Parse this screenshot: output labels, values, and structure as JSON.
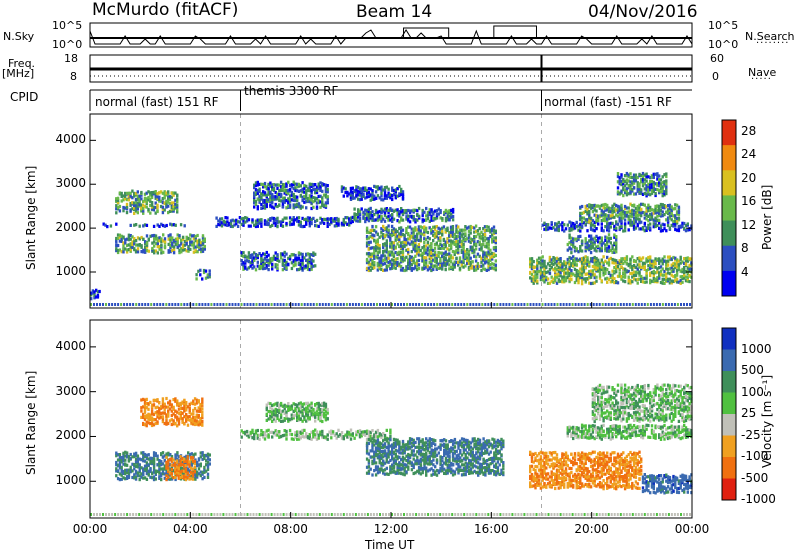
{
  "header": {
    "station": "McMurdo (fitACF)",
    "beam": "Beam 14",
    "date": "04/Nov/2016"
  },
  "summary_panels": {
    "left_labels": {
      "nsky": "N.Sky",
      "freq": "Freq.",
      "mhz": "[MHz]",
      "cpid": "CPID"
    },
    "right_labels": {
      "nsearch": "N.Search",
      "nave": "Nave"
    },
    "noise_ticks_left": [
      "10^5",
      "10^0"
    ],
    "noise_ticks_right": [
      "10^5",
      "10^0"
    ],
    "freq_ticks_left": [
      "18",
      "8"
    ],
    "nave_ticks_right": [
      "60",
      "0"
    ],
    "cpid_segments": [
      {
        "label": "normal (fast) 151 RF",
        "start": 0,
        "end": 6
      },
      {
        "label": "themis 3300 RF",
        "start": 6,
        "end": 18
      },
      {
        "label": "normal (fast) -151 RF",
        "start": 18,
        "end": 24
      }
    ]
  },
  "chart_data": [
    {
      "type": "heatmap",
      "name": "power",
      "ylabel": "Slant Range [km]",
      "xlabel": "",
      "xlim": [
        0,
        24
      ],
      "ylim": [
        180,
        4600
      ],
      "yticks": [
        "1000",
        "2000",
        "3000",
        "4000"
      ],
      "colorbar": {
        "label": "Power [dB]",
        "ticks": [
          "4",
          "8",
          "12",
          "16",
          "20",
          "24",
          "28"
        ],
        "range": [
          0,
          30
        ],
        "colors": [
          "#0000f0",
          "#2c4fc0",
          "#3f8f5a",
          "#69b94a",
          "#d9c020",
          "#f08a10",
          "#e03010"
        ]
      },
      "regions": [
        {
          "t": [
            1.0,
            4.6
          ],
          "r": [
            1500,
            1900
          ],
          "value": 12
        },
        {
          "t": [
            0.5,
            3.8
          ],
          "r": [
            2100,
            2150
          ],
          "value": 6
        },
        {
          "t": [
            0.0,
            0.4
          ],
          "r": [
            450,
            650
          ],
          "value": 6
        },
        {
          "t": [
            4.2,
            4.8
          ],
          "r": [
            900,
            1100
          ],
          "value": 10
        },
        {
          "t": [
            1.0,
            3.5
          ],
          "r": [
            2400,
            2900
          ],
          "value": 12
        },
        {
          "t": [
            5.0,
            10.5
          ],
          "r": [
            2100,
            2300
          ],
          "value": 6
        },
        {
          "t": [
            6.5,
            9.5
          ],
          "r": [
            2500,
            3100
          ],
          "value": 8
        },
        {
          "t": [
            6.0,
            9.0
          ],
          "r": [
            1100,
            1500
          ],
          "value": 8
        },
        {
          "t": [
            11.0,
            16.2
          ],
          "r": [
            1100,
            2100
          ],
          "value": 12
        },
        {
          "t": [
            10.5,
            14.5
          ],
          "r": [
            2200,
            2500
          ],
          "value": 8
        },
        {
          "t": [
            10.0,
            12.5
          ],
          "r": [
            2700,
            3000
          ],
          "value": 6
        },
        {
          "t": [
            17.5,
            24.0
          ],
          "r": [
            800,
            1400
          ],
          "value": 14
        },
        {
          "t": [
            18.0,
            24.0
          ],
          "r": [
            2000,
            2200
          ],
          "value": 6
        },
        {
          "t": [
            19.5,
            23.5
          ],
          "r": [
            2200,
            2600
          ],
          "value": 12
        },
        {
          "t": [
            21.0,
            23.0
          ],
          "r": [
            2800,
            3300
          ],
          "value": 10
        },
        {
          "t": [
            19.0,
            21.0
          ],
          "r": [
            1500,
            1900
          ],
          "value": 10
        }
      ]
    },
    {
      "type": "heatmap",
      "name": "velocity",
      "ylabel": "Slant Range [km]",
      "xlabel": "Time UT",
      "xlim": [
        0,
        24
      ],
      "ylim": [
        180,
        4600
      ],
      "xticks": [
        "00:00",
        "04:00",
        "08:00",
        "12:00",
        "16:00",
        "20:00",
        "00:00"
      ],
      "yticks": [
        "1000",
        "2000",
        "3000",
        "4000"
      ],
      "colorbar": {
        "label": "Velocity [m s⁻¹]",
        "ticks": [
          "1000",
          "500",
          "100",
          "25",
          "-25",
          "-100",
          "-500",
          "-1000"
        ],
        "colors": [
          "#1030c0",
          "#3a6ab0",
          "#3f8f5a",
          "#50c040",
          "#c0c0b8",
          "#f0a020",
          "#f07010",
          "#e02010"
        ]
      },
      "regions": [
        {
          "t": [
            1.0,
            4.8
          ],
          "r": [
            1100,
            1700
          ],
          "value": 100
        },
        {
          "t": [
            2.0,
            4.5
          ],
          "r": [
            2300,
            2900
          ],
          "value": -500
        },
        {
          "t": [
            3.0,
            4.2
          ],
          "r": [
            1100,
            1600
          ],
          "value": -500
        },
        {
          "t": [
            6.0,
            12.0
          ],
          "r": [
            2000,
            2200
          ],
          "value": 0
        },
        {
          "t": [
            7.0,
            9.5
          ],
          "r": [
            2400,
            2800
          ],
          "value": 0
        },
        {
          "t": [
            11.0,
            16.5
          ],
          "r": [
            1200,
            2000
          ],
          "value": 100
        },
        {
          "t": [
            17.5,
            22.0
          ],
          "r": [
            900,
            1700
          ],
          "value": -500
        },
        {
          "t": [
            19.0,
            24.0
          ],
          "r": [
            2000,
            2300
          ],
          "value": 0
        },
        {
          "t": [
            20.0,
            24.0
          ],
          "r": [
            2400,
            3200
          ],
          "value": 0
        },
        {
          "t": [
            22.0,
            24.0
          ],
          "r": [
            800,
            1200
          ],
          "value": 300
        }
      ]
    }
  ]
}
